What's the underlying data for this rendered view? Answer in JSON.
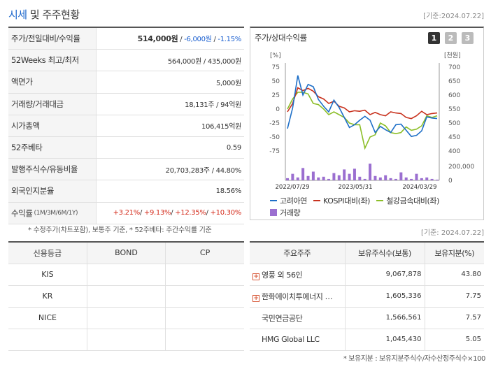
{
  "header": {
    "title_main": "시세",
    "title_rest": " 및 주주현황",
    "date": "[기준:2024.07.22]"
  },
  "stock_table": [
    {
      "label": "주가/전일대비/수익률",
      "price": "514,000원",
      "change": "-6,000원",
      "rate": "-1.15%"
    },
    {
      "label": "52Weeks 최고/최저",
      "value": "564,000원 / 435,000원"
    },
    {
      "label": "액면가",
      "value": "5,000원"
    },
    {
      "label": "거래량/거래대금",
      "value": "18,131주 / 94억원"
    },
    {
      "label": "시가총액",
      "value": "106,415억원"
    },
    {
      "label": "52주베타",
      "value": "0.59"
    },
    {
      "label": "발행주식수/유동비율",
      "value": "20,703,283주 / 44.80%"
    },
    {
      "label": "외국인지분율",
      "value": "18.56%"
    },
    {
      "label": "수익률",
      "label_sub": "(1M/3M/6M/1Y)",
      "r1m": "+3.21%",
      "r3m": "+9.13%",
      "r6m": "+12.35%",
      "r1y": "+10.30%"
    }
  ],
  "note_left": "* 수정주가(차트포함), 보통주 기준, * 52주베타: 주간수익률 기준",
  "chart": {
    "title": "주가/상대수익률",
    "tabs": [
      "1",
      "2",
      "3"
    ],
    "left_unit": "[%]",
    "right_unit": "[천원]",
    "legend": [
      "고려아연",
      "KOSPI대비(좌)",
      "철강금속대비(좌)",
      "거래량"
    ],
    "colors": {
      "stock": "#1e6fc8",
      "kospi": "#c8321e",
      "steel": "#8cbe28",
      "volume": "#9b6fd0"
    }
  },
  "chart_data": {
    "type": "line",
    "x_ticks": [
      "2022/07/29",
      "2023/05/31",
      "2024/03/29"
    ],
    "y_left_ticks": [
      "75",
      "50",
      "25",
      "0",
      "-25",
      "-50",
      "-75"
    ],
    "y_right_ticks": [
      "700",
      "650",
      "600",
      "550",
      "500",
      "450",
      "400"
    ],
    "volume_ticks": [
      "200,000",
      "0"
    ],
    "ylim_left": [
      -75,
      75
    ],
    "ylim_right": [
      400,
      700
    ],
    "series": [
      {
        "name": "고려아연",
        "values": [
          -35,
          2,
          60,
          25,
          44,
          40,
          17,
          5,
          -5,
          16,
          3,
          -15,
          -33,
          -28,
          -20,
          -13,
          -20,
          -42,
          -31,
          -37,
          -42,
          -28,
          -27,
          -38,
          -49,
          -47,
          -39,
          -14,
          -16,
          -17
        ]
      },
      {
        "name": "KOSPI대비(좌)",
        "values": [
          -5,
          10,
          38,
          33,
          37,
          32,
          22,
          18,
          10,
          14,
          5,
          2,
          -5,
          -3,
          -4,
          -2,
          -10,
          -6,
          -10,
          -12,
          -5,
          -7,
          -8,
          -15,
          -17,
          -12,
          -4,
          -10,
          -8,
          -7
        ]
      },
      {
        "name": "철강금속대비(좌)",
        "values": [
          0,
          18,
          30,
          30,
          27,
          10,
          8,
          0,
          -10,
          -5,
          -10,
          -15,
          -25,
          -28,
          -28,
          -70,
          -50,
          -46,
          -25,
          -30,
          -42,
          -44,
          -42,
          -32,
          -38,
          -36,
          -30,
          -12,
          -15,
          -12
        ]
      },
      {
        "name": "거래량",
        "values": [
          30000,
          90000,
          40000,
          170000,
          60000,
          120000,
          40000,
          50000,
          20000,
          100000,
          70000,
          150000,
          90000,
          160000,
          50000,
          20000,
          230000,
          60000,
          40000,
          70000,
          30000,
          20000,
          110000,
          40000,
          20000,
          90000,
          30000,
          40000,
          20000,
          10000
        ]
      }
    ]
  },
  "right_date": "[기준: 2024.07.22]",
  "credit": {
    "headers": [
      "신용등급",
      "BOND",
      "CP"
    ],
    "rows": [
      {
        "agency": "KIS",
        "bond": "",
        "cp": ""
      },
      {
        "agency": "KR",
        "bond": "",
        "cp": ""
      },
      {
        "agency": "NICE",
        "bond": "",
        "cp": ""
      },
      {
        "agency": "",
        "bond": "",
        "cp": ""
      }
    ]
  },
  "holders": {
    "headers": [
      "주요주주",
      "보유주식수(보통)",
      "보유지분(%)"
    ],
    "rows": [
      {
        "name": "영풍 외 56인",
        "shares": "9,067,878",
        "pct": "43.80",
        "expand": "+"
      },
      {
        "name": "한화에이치투에너지 …",
        "shares": "1,605,336",
        "pct": "7.75",
        "expand": "+"
      },
      {
        "name": "국민연금공단",
        "shares": "1,566,561",
        "pct": "7.57",
        "expand": ""
      },
      {
        "name": "HMG Global LLC",
        "shares": "1,045,430",
        "pct": "5.05",
        "expand": ""
      }
    ]
  },
  "note_right": "* 보유지분 : 보유지분주식수/자수산정주식수×100"
}
